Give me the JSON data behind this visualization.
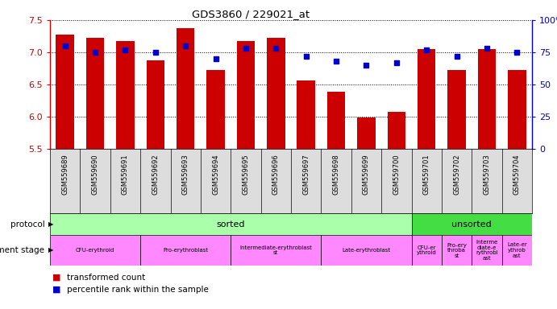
{
  "title": "GDS3860 / 229021_at",
  "samples": [
    "GSM559689",
    "GSM559690",
    "GSM559691",
    "GSM559692",
    "GSM559693",
    "GSM559694",
    "GSM559695",
    "GSM559696",
    "GSM559697",
    "GSM559698",
    "GSM559699",
    "GSM559700",
    "GSM559701",
    "GSM559702",
    "GSM559703",
    "GSM559704"
  ],
  "bar_values": [
    7.28,
    7.22,
    7.17,
    6.88,
    7.38,
    6.72,
    7.17,
    7.23,
    6.56,
    6.39,
    5.99,
    6.07,
    7.05,
    6.72,
    7.05,
    6.72
  ],
  "dot_values": [
    80,
    75,
    77,
    75,
    80,
    70,
    78,
    78,
    72,
    68,
    65,
    67,
    77,
    72,
    78,
    75
  ],
  "bar_color": "#cc0000",
  "dot_color": "#0000cc",
  "ymin": 5.5,
  "ymax": 7.5,
  "y2min": 0,
  "y2max": 100,
  "yticks": [
    5.5,
    6.0,
    6.5,
    7.0,
    7.5
  ],
  "y2ticks": [
    0,
    25,
    50,
    75,
    100
  ],
  "y2ticklabels": [
    "0",
    "25",
    "50",
    "75",
    "100%"
  ],
  "background_color": "#ffffff",
  "protocol_labels": [
    {
      "label": "sorted",
      "start": 0,
      "end": 12,
      "color": "#aaffaa"
    },
    {
      "label": "unsorted",
      "start": 12,
      "end": 16,
      "color": "#44dd44"
    }
  ],
  "dev_stage_labels": [
    {
      "label": "CFU-erythroid",
      "start": 0,
      "end": 3,
      "color": "#ff88ff"
    },
    {
      "label": "Pro-erythroblast",
      "start": 3,
      "end": 6,
      "color": "#ff88ff"
    },
    {
      "label": "Intermediate-erythroblast\nst",
      "start": 6,
      "end": 9,
      "color": "#ff88ff"
    },
    {
      "label": "Late-erythroblast",
      "start": 9,
      "end": 12,
      "color": "#ff88ff"
    },
    {
      "label": "CFU-er\nythroid",
      "start": 12,
      "end": 13,
      "color": "#ff88ff"
    },
    {
      "label": "Pro-ery\nthroba\nst",
      "start": 13,
      "end": 14,
      "color": "#ff88ff"
    },
    {
      "label": "Interme\ndiate-e\nrythrobl\nast",
      "start": 14,
      "end": 15,
      "color": "#ff88ff"
    },
    {
      "label": "Late-er\nythrob\nast",
      "start": 15,
      "end": 16,
      "color": "#ff88ff"
    }
  ]
}
